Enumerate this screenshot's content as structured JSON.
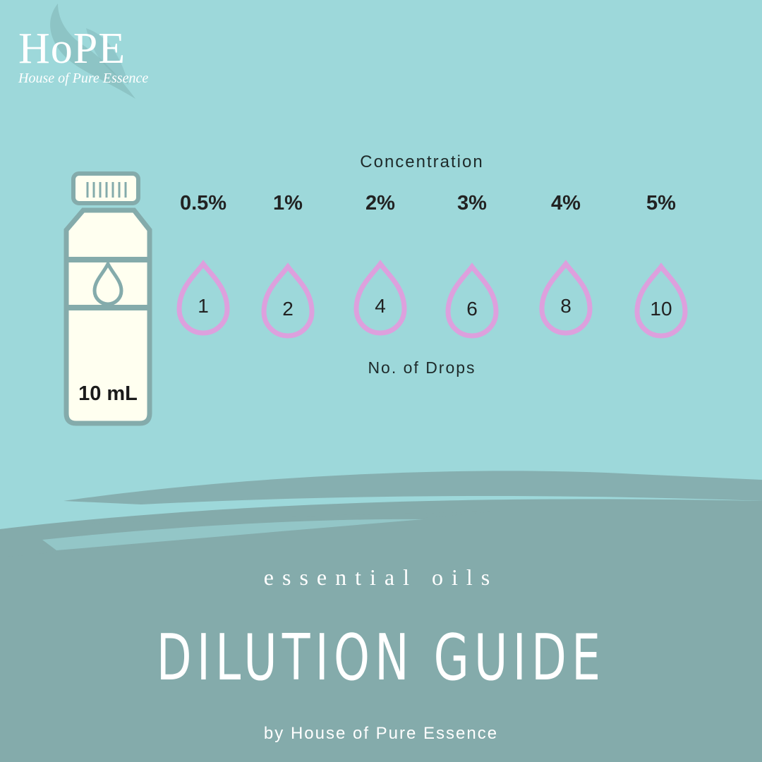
{
  "logo": {
    "title": "HoPE",
    "subtitle": "House of Pure Essence"
  },
  "labels": {
    "concentration": "Concentration",
    "drops": "No. of Drops"
  },
  "bottle": {
    "volume": "10 mL"
  },
  "rows": [
    {
      "percent": "0.5%",
      "drops": "1"
    },
    {
      "percent": "1%",
      "drops": "2"
    },
    {
      "percent": "2%",
      "drops": "4"
    },
    {
      "percent": "3%",
      "drops": "6"
    },
    {
      "percent": "4%",
      "drops": "8"
    },
    {
      "percent": "5%",
      "drops": "10"
    }
  ],
  "footer": {
    "subtitle": "essential oils",
    "title": "DILUTION GUIDE",
    "byline": "by House of Pure Essence"
  },
  "colors": {
    "background": "#9dd8da",
    "band": "#84abab",
    "drop": "#dda0dd",
    "bottle_fill": "#fffff0"
  }
}
